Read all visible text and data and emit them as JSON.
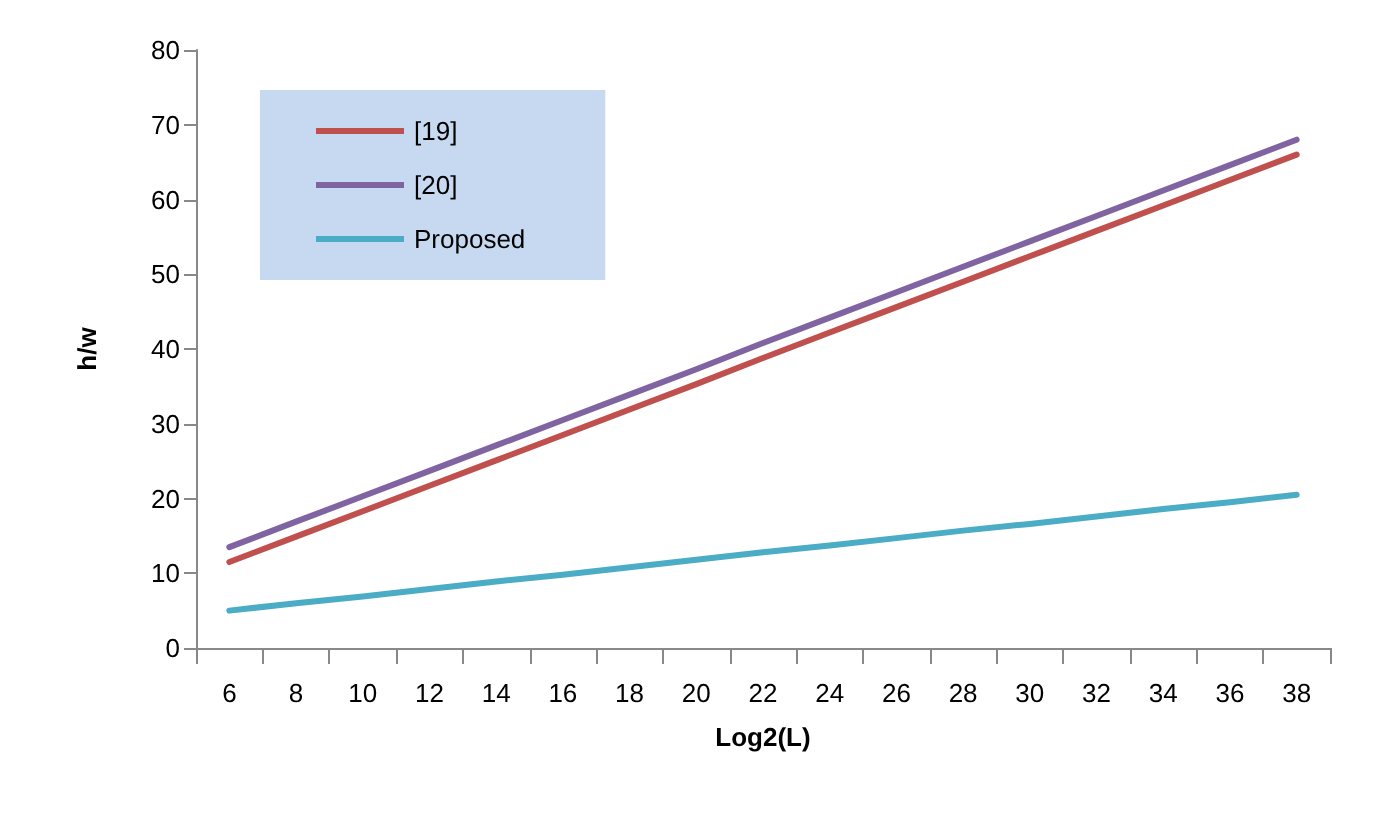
{
  "chart_data": {
    "type": "line",
    "xlabel": "Log2(L)",
    "ylabel": "h/w",
    "categories": [
      "6",
      "8",
      "10",
      "12",
      "14",
      "16",
      "18",
      "20",
      "22",
      "24",
      "26",
      "28",
      "30",
      "32",
      "34",
      "36",
      "38"
    ],
    "series": [
      {
        "name": "[19]",
        "color": "#c0504d",
        "values": [
          11.5,
          14.9,
          18.3,
          21.7,
          25.1,
          28.5,
          31.9,
          35.3,
          38.8,
          42.2,
          45.6,
          49.0,
          52.4,
          55.8,
          59.2,
          62.6,
          66.0
        ]
      },
      {
        "name": "[20]",
        "color": "#8064a2",
        "values": [
          13.5,
          16.9,
          20.3,
          23.7,
          27.1,
          30.5,
          33.9,
          37.3,
          40.8,
          44.2,
          47.6,
          51.0,
          54.4,
          57.8,
          61.2,
          64.6,
          68.0
        ]
      },
      {
        "name": "Proposed",
        "color": "#4bacc6",
        "values": [
          5,
          6,
          6.9,
          7.9,
          8.9,
          9.8,
          10.8,
          11.8,
          12.8,
          13.7,
          14.7,
          15.7,
          16.6,
          17.6,
          18.6,
          19.5,
          20.5
        ]
      }
    ],
    "ylim": [
      0,
      80
    ],
    "yticks": [
      0,
      10,
      20,
      30,
      40,
      50,
      60,
      70,
      80
    ],
    "grid": false,
    "legend": "top left",
    "marker": "none",
    "line_style": "solid"
  }
}
